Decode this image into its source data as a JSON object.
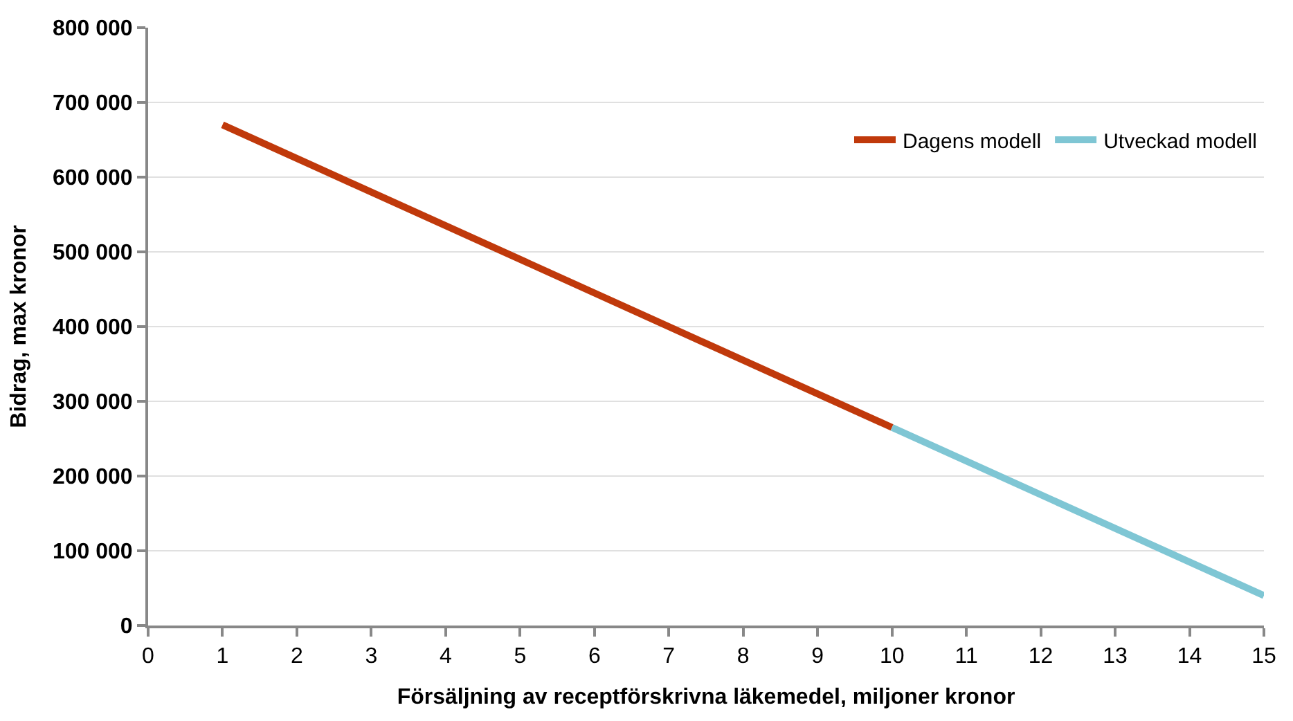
{
  "chart_data": {
    "type": "line",
    "xlabel": "Försäljning av receptförskrivna läkemedel, miljoner kronor",
    "ylabel": "Bidrag, max kronor",
    "series": [
      {
        "name": "Dagens modell",
        "color": "#c0390b",
        "x": [
          1,
          10
        ],
        "values": [
          670000,
          265000
        ]
      },
      {
        "name": "Utveckad modell",
        "color": "#7fc6d4",
        "x": [
          10,
          15
        ],
        "values": [
          265000,
          40000
        ]
      }
    ],
    "xlim": [
      0,
      15
    ],
    "xticks": [
      0,
      1,
      2,
      3,
      4,
      5,
      6,
      7,
      8,
      9,
      10,
      11,
      12,
      13,
      14,
      15
    ],
    "ylim": [
      0,
      800000
    ],
    "yticks": [
      {
        "value": 0,
        "label": "0"
      },
      {
        "value": 100000,
        "label": "100 000"
      },
      {
        "value": 200000,
        "label": "200 000"
      },
      {
        "value": 300000,
        "label": "300 000"
      },
      {
        "value": 400000,
        "label": "400 000"
      },
      {
        "value": 500000,
        "label": "500 000"
      },
      {
        "value": 600000,
        "label": "600 000"
      },
      {
        "value": 700000,
        "label": "700 000"
      },
      {
        "value": 800000,
        "label": "800 000"
      }
    ],
    "grid": "y",
    "legend": "top right",
    "marker": "none",
    "line_style": "solid"
  }
}
